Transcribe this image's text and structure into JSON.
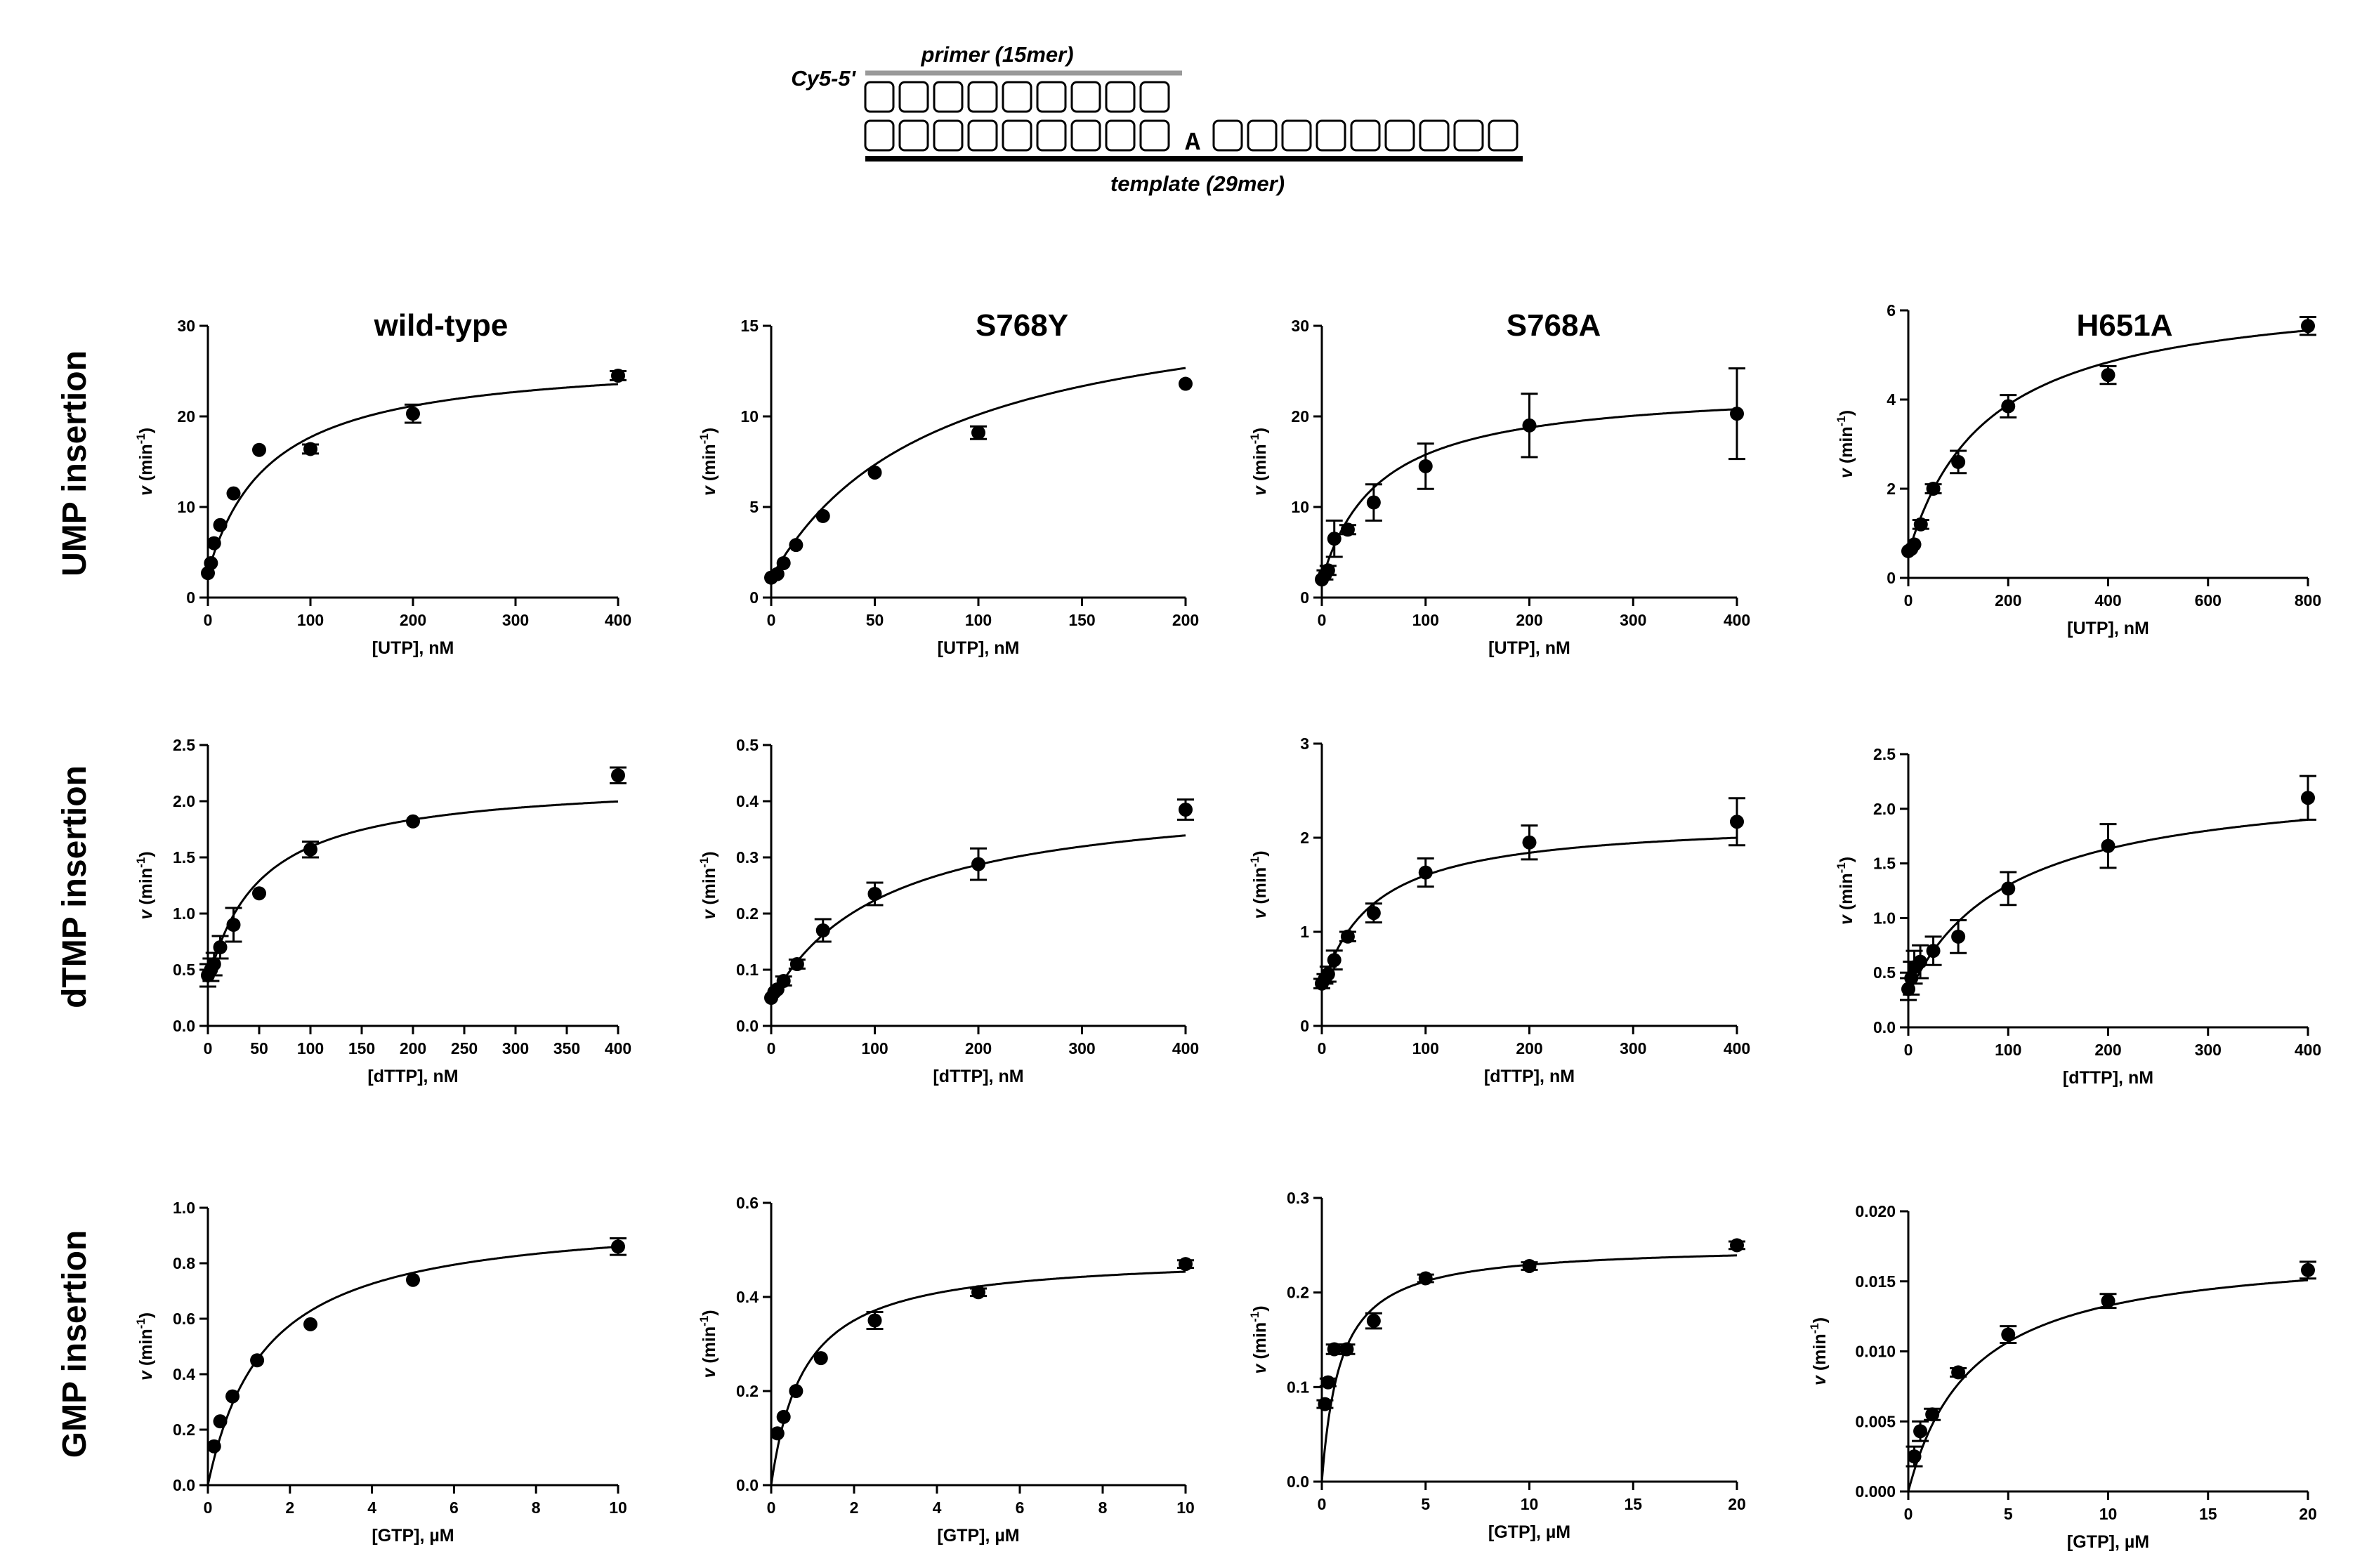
{
  "diagram": {
    "dye_label": "Cy5-5'",
    "primer_label": "primer (15mer)",
    "template_label": "template (29mer)",
    "template_base": "A",
    "top_boxes": 9,
    "bottom_left_boxes": 9,
    "bottom_right_boxes": 9
  },
  "column_titles": [
    "wild-type",
    "S768Y",
    "S768A",
    "H651A"
  ],
  "row_labels": [
    "UMP insertion",
    "dTMP insertion",
    "GMP insertion"
  ],
  "chart_data": [
    {
      "type": "scatter",
      "row": 0,
      "col": 0,
      "ylabel": "v (min-1)",
      "xlabel": "[UTP], nM",
      "xlim": [
        0,
        400
      ],
      "ylim": [
        0,
        30
      ],
      "xticks": [
        0,
        100,
        200,
        300,
        400
      ],
      "yticks": [
        0,
        10,
        20,
        30
      ],
      "ytick_labels": [
        "0",
        "10",
        "20",
        "30"
      ],
      "x": [
        0,
        3,
        6,
        12,
        25,
        50,
        100,
        200,
        400
      ],
      "y": [
        2.7,
        3.8,
        6.0,
        8.0,
        11.5,
        16.3,
        16.4,
        20.3,
        24.5
      ],
      "err": [
        0.2,
        0.2,
        0.2,
        0.2,
        0.3,
        0.3,
        0.5,
        1.0,
        0.5
      ],
      "fit": {
        "v0": 2.7,
        "vmax": 24,
        "km": 60
      }
    },
    {
      "type": "scatter",
      "row": 0,
      "col": 1,
      "ylabel": "v (min-1)",
      "xlabel": "[UTP], nM",
      "xlim": [
        0,
        200
      ],
      "ylim": [
        0,
        15
      ],
      "xticks": [
        0,
        50,
        100,
        150,
        200
      ],
      "yticks": [
        0,
        5,
        10,
        15
      ],
      "ytick_labels": [
        "0",
        "5",
        "10",
        "15"
      ],
      "x": [
        0,
        3,
        6,
        12,
        25,
        50,
        100,
        200
      ],
      "y": [
        1.1,
        1.3,
        1.9,
        2.9,
        4.5,
        6.9,
        9.1,
        11.8
      ],
      "err": [
        0.1,
        0.1,
        0.1,
        0.1,
        0.1,
        0.1,
        0.35,
        0.1
      ],
      "fit": {
        "v0": 1.1,
        "vmax": 16.2,
        "km": 80
      }
    },
    {
      "type": "scatter",
      "row": 0,
      "col": 2,
      "ylabel": "v (min-1)",
      "xlabel": "[UTP], nM",
      "xlim": [
        0,
        400
      ],
      "ylim": [
        0,
        30
      ],
      "xticks": [
        0,
        100,
        200,
        300,
        400
      ],
      "yticks": [
        0,
        10,
        20,
        30
      ],
      "ytick_labels": [
        "0",
        "10",
        "20",
        "30"
      ],
      "x": [
        0,
        3,
        6,
        12,
        25,
        50,
        100,
        200,
        400
      ],
      "y": [
        2.0,
        2.5,
        3.0,
        6.5,
        7.5,
        10.5,
        14.5,
        19.0,
        20.3
      ],
      "err": [
        0.3,
        0.5,
        0.5,
        2.0,
        0.5,
        2.0,
        2.5,
        3.5,
        5.0
      ],
      "fit": {
        "v0": 1.9,
        "vmax": 21.5,
        "km": 55
      }
    },
    {
      "type": "scatter",
      "row": 0,
      "col": 3,
      "ylabel": "v (min-1)",
      "xlabel": "[UTP], nM",
      "xlim": [
        0,
        800
      ],
      "ylim": [
        0,
        6
      ],
      "xticks": [
        0,
        200,
        400,
        600,
        800
      ],
      "yticks": [
        0,
        2,
        4,
        6
      ],
      "ytick_labels": [
        "0",
        "2",
        "4",
        "6"
      ],
      "x": [
        0,
        6,
        12,
        25,
        50,
        100,
        200,
        400,
        800
      ],
      "y": [
        0.6,
        0.65,
        0.75,
        1.2,
        2.0,
        2.6,
        3.85,
        4.55,
        5.65
      ],
      "err": [
        0.05,
        0.05,
        0.05,
        0.1,
        0.1,
        0.25,
        0.25,
        0.2,
        0.2
      ],
      "fit": {
        "v0": 0.55,
        "vmax": 6.0,
        "km": 160
      }
    },
    {
      "type": "scatter",
      "row": 1,
      "col": 0,
      "ylabel": "v (min-1)",
      "xlabel": "[dTTP], nM",
      "xlim": [
        0,
        400
      ],
      "ylim": [
        0,
        2.5
      ],
      "xticks": [
        0,
        50,
        100,
        150,
        200,
        250,
        300,
        350,
        400
      ],
      "yticks": [
        0,
        0.5,
        1,
        1.5,
        2,
        2.5
      ],
      "ytick_labels": [
        "0.0",
        "0.5",
        "1.0",
        "1.5",
        "2.0",
        "2.5"
      ],
      "x": [
        0,
        3,
        6,
        12,
        25,
        50,
        100,
        200,
        400
      ],
      "y": [
        0.45,
        0.5,
        0.55,
        0.7,
        0.9,
        1.18,
        1.57,
        1.82,
        2.23
      ],
      "err": [
        0.1,
        0.1,
        0.1,
        0.1,
        0.15,
        0.03,
        0.07,
        0.03,
        0.07
      ],
      "fit": {
        "v0": 0.38,
        "vmax": 1.82,
        "km": 50
      }
    },
    {
      "type": "scatter",
      "row": 1,
      "col": 1,
      "ylabel": "v (min-1)",
      "xlabel": "[dTTP], nM",
      "xlim": [
        0,
        400
      ],
      "ylim": [
        0,
        0.5
      ],
      "xticks": [
        0,
        100,
        200,
        300,
        400
      ],
      "yticks": [
        0,
        0.1,
        0.2,
        0.3,
        0.4,
        0.5
      ],
      "ytick_labels": [
        "0.0",
        "0.1",
        "0.2",
        "0.3",
        "0.4",
        "0.5"
      ],
      "x": [
        0,
        3,
        6,
        12,
        25,
        50,
        100,
        200,
        400
      ],
      "y": [
        0.05,
        0.06,
        0.065,
        0.08,
        0.11,
        0.17,
        0.235,
        0.288,
        0.385
      ],
      "err": [
        0.005,
        0.005,
        0.005,
        0.008,
        0.008,
        0.02,
        0.02,
        0.028,
        0.018
      ],
      "fit": {
        "v0": 0.045,
        "vmax": 0.375,
        "km": 110
      }
    },
    {
      "type": "scatter",
      "row": 1,
      "col": 2,
      "ylabel": "v (min-1)",
      "xlabel": "[dTTP], nM",
      "xlim": [
        0,
        400
      ],
      "ylim": [
        0,
        3
      ],
      "xticks": [
        0,
        100,
        200,
        300,
        400
      ],
      "yticks": [
        0,
        1,
        2,
        3
      ],
      "ytick_labels": [
        "0",
        "1",
        "2",
        "3"
      ],
      "x": [
        0,
        3,
        6,
        12,
        25,
        50,
        100,
        200,
        400
      ],
      "y": [
        0.45,
        0.5,
        0.55,
        0.7,
        0.95,
        1.2,
        1.63,
        1.95,
        2.17
      ],
      "err": [
        0.05,
        0.05,
        0.08,
        0.1,
        0.05,
        0.1,
        0.15,
        0.18,
        0.25
      ],
      "fit": {
        "v0": 0.4,
        "vmax": 1.8,
        "km": 50
      }
    },
    {
      "type": "scatter",
      "row": 1,
      "col": 3,
      "ylabel": "v (min-1)",
      "xlabel": "[dTTP], nM",
      "xlim": [
        0,
        400
      ],
      "ylim": [
        0,
        2.5
      ],
      "xticks": [
        0,
        100,
        200,
        300,
        400
      ],
      "yticks": [
        0,
        0.5,
        1,
        1.5,
        2,
        2.5
      ],
      "ytick_labels": [
        "0.0",
        "0.5",
        "1.0",
        "1.5",
        "2.0",
        "2.5"
      ],
      "x": [
        0,
        3,
        6,
        12,
        25,
        50,
        100,
        200,
        400
      ],
      "y": [
        0.35,
        0.45,
        0.55,
        0.6,
        0.7,
        0.83,
        1.27,
        1.66,
        2.1
      ],
      "err": [
        0.1,
        0.15,
        0.15,
        0.15,
        0.13,
        0.15,
        0.15,
        0.2,
        0.2
      ],
      "fit": {
        "v0": 0.3,
        "vmax": 2.0,
        "km": 100
      }
    },
    {
      "type": "scatter",
      "row": 2,
      "col": 0,
      "ylabel": "v (min-1)",
      "xlabel": "[GTP], µM",
      "xlim": [
        0,
        10
      ],
      "ylim": [
        0,
        1
      ],
      "xticks": [
        0,
        2,
        4,
        6,
        8,
        10
      ],
      "yticks": [
        0,
        0.2,
        0.4,
        0.6,
        0.8,
        1
      ],
      "ytick_labels": [
        "0.0",
        "0.2",
        "0.4",
        "0.6",
        "0.8",
        "1.0"
      ],
      "x": [
        0.15,
        0.3,
        0.6,
        1.2,
        2.5,
        5,
        10
      ],
      "y": [
        0.14,
        0.23,
        0.32,
        0.45,
        0.58,
        0.74,
        0.86
      ],
      "err": [
        0.01,
        0.01,
        0.01,
        0.01,
        0.01,
        0.01,
        0.03
      ],
      "fit": {
        "v0": 0,
        "vmax": 0.98,
        "km": 1.4
      }
    },
    {
      "type": "scatter",
      "row": 2,
      "col": 1,
      "ylabel": "v (min-1)",
      "xlabel": "[GTP], µM",
      "xlim": [
        0,
        10
      ],
      "ylim": [
        0,
        0.6
      ],
      "xticks": [
        0,
        2,
        4,
        6,
        8,
        10
      ],
      "yticks": [
        0,
        0.2,
        0.4,
        0.6
      ],
      "ytick_labels": [
        "0.0",
        "0.2",
        "0.4",
        "0.6"
      ],
      "x": [
        0.15,
        0.3,
        0.6,
        1.2,
        2.5,
        5,
        10
      ],
      "y": [
        0.11,
        0.145,
        0.2,
        0.27,
        0.35,
        0.41,
        0.47
      ],
      "err": [
        0.005,
        0.005,
        0.005,
        0.005,
        0.018,
        0.008,
        0.008
      ],
      "fit": {
        "v0": 0,
        "vmax": 0.49,
        "km": 0.8
      }
    },
    {
      "type": "scatter",
      "row": 2,
      "col": 2,
      "ylabel": "v (min-1)",
      "xlabel": "[GTP], µM",
      "xlim": [
        0,
        20
      ],
      "ylim": [
        0,
        0.3
      ],
      "xticks": [
        0,
        5,
        10,
        15,
        20
      ],
      "yticks": [
        0,
        0.1,
        0.2,
        0.3
      ],
      "ytick_labels": [
        "0.0",
        "0.1",
        "0.2",
        "0.3"
      ],
      "x": [
        0.15,
        0.3,
        0.6,
        1.2,
        2.5,
        5,
        10,
        20
      ],
      "y": [
        0.082,
        0.105,
        0.14,
        0.14,
        0.17,
        0.215,
        0.228,
        0.25
      ],
      "err": [
        0.004,
        0.004,
        0.005,
        0.005,
        0.008,
        0.004,
        0.004,
        0.004
      ],
      "fit": {
        "v0": 0,
        "vmax": 0.25,
        "km": 0.9
      }
    },
    {
      "type": "scatter",
      "row": 2,
      "col": 3,
      "ylabel": "v (min-1)",
      "xlabel": "[GTP], µM",
      "xlim": [
        0,
        20
      ],
      "ylim": [
        0,
        0.02
      ],
      "xticks": [
        0,
        5,
        10,
        15,
        20
      ],
      "yticks": [
        0,
        0.005,
        0.01,
        0.015,
        0.02
      ],
      "ytick_labels": [
        "0.000",
        "0.005",
        "0.010",
        "0.015",
        "0.020"
      ],
      "x": [
        0.3,
        0.6,
        1.2,
        2.5,
        5,
        10,
        20
      ],
      "y": [
        0.0025,
        0.0043,
        0.0055,
        0.0085,
        0.0112,
        0.0136,
        0.0158
      ],
      "err": [
        0.0007,
        0.0007,
        0.0004,
        0.0003,
        0.0006,
        0.0005,
        0.0006
      ],
      "fit": {
        "v0": 0,
        "vmax": 0.0175,
        "km": 3.2
      }
    }
  ]
}
